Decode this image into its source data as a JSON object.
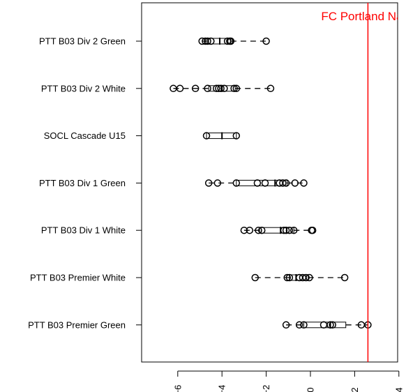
{
  "chart_data": {
    "type": "boxplot",
    "orientation": "horizontal",
    "x_ticks": [
      -6,
      -4,
      -2,
      0,
      2,
      4
    ],
    "xlim": [
      -7.5,
      4
    ],
    "categories": [
      "PTT B03 Div 2 Green",
      "PTT B03 Div 2 White",
      "SOCL Cascade U15",
      "PTT B03 Div 1 Green",
      "PTT B03 Div 1 White",
      "PTT B03 Premier White",
      "PTT B03 Premier Green"
    ],
    "boxes": [
      {
        "whisker_low": -4.9,
        "q1": -4.7,
        "median": -4.1,
        "q3": -3.6,
        "whisker_high": -2.0,
        "points": [
          -4.9,
          -4.75,
          -4.65,
          -4.5,
          -3.75,
          -3.65,
          -3.6,
          -2.0
        ]
      },
      {
        "whisker_low": -6.2,
        "q1": -4.6,
        "median": -4.0,
        "q3": -3.4,
        "whisker_high": -1.8,
        "points": [
          -6.2,
          -5.9,
          -5.2,
          -4.65,
          -4.25,
          -4.15,
          -4.05,
          -3.9,
          -3.45,
          -3.35,
          -1.8
        ]
      },
      {
        "whisker_low": -4.7,
        "q1": -4.7,
        "median": -4.0,
        "q3": -3.35,
        "whisker_high": -3.35,
        "points": [
          -4.7,
          -3.35
        ]
      },
      {
        "whisker_low": -4.6,
        "q1": -3.35,
        "median": -1.6,
        "q3": -1.05,
        "whisker_high": -0.3,
        "points": [
          -4.6,
          -4.2,
          -3.35,
          -2.4,
          -2.05,
          -1.4,
          -1.25,
          -1.1,
          -0.7,
          -0.3
        ]
      },
      {
        "whisker_low": -3.0,
        "q1": -2.3,
        "median": -1.35,
        "q3": -0.75,
        "whisker_high": 0.1,
        "points": [
          -3.0,
          -2.75,
          -2.35,
          -2.2,
          -1.2,
          -1.1,
          -0.95,
          -0.75,
          0.05,
          0.1
        ]
      },
      {
        "whisker_low": -2.5,
        "q1": -0.95,
        "median": -0.65,
        "q3": -0.1,
        "whisker_high": 1.55,
        "points": [
          -2.5,
          -1.05,
          -0.95,
          -0.5,
          -0.35,
          -0.2,
          -0.05,
          1.55
        ]
      },
      {
        "whisker_low": -1.1,
        "q1": -0.3,
        "median": 0.9,
        "q3": 1.6,
        "whisker_high": 2.6,
        "points": [
          -1.1,
          -0.5,
          -0.3,
          0.6,
          0.9,
          1.0,
          2.3,
          2.6
        ]
      }
    ],
    "reference_line": {
      "x": 2.6,
      "label": "FC Portland Navy",
      "color": "#ff0000"
    }
  }
}
